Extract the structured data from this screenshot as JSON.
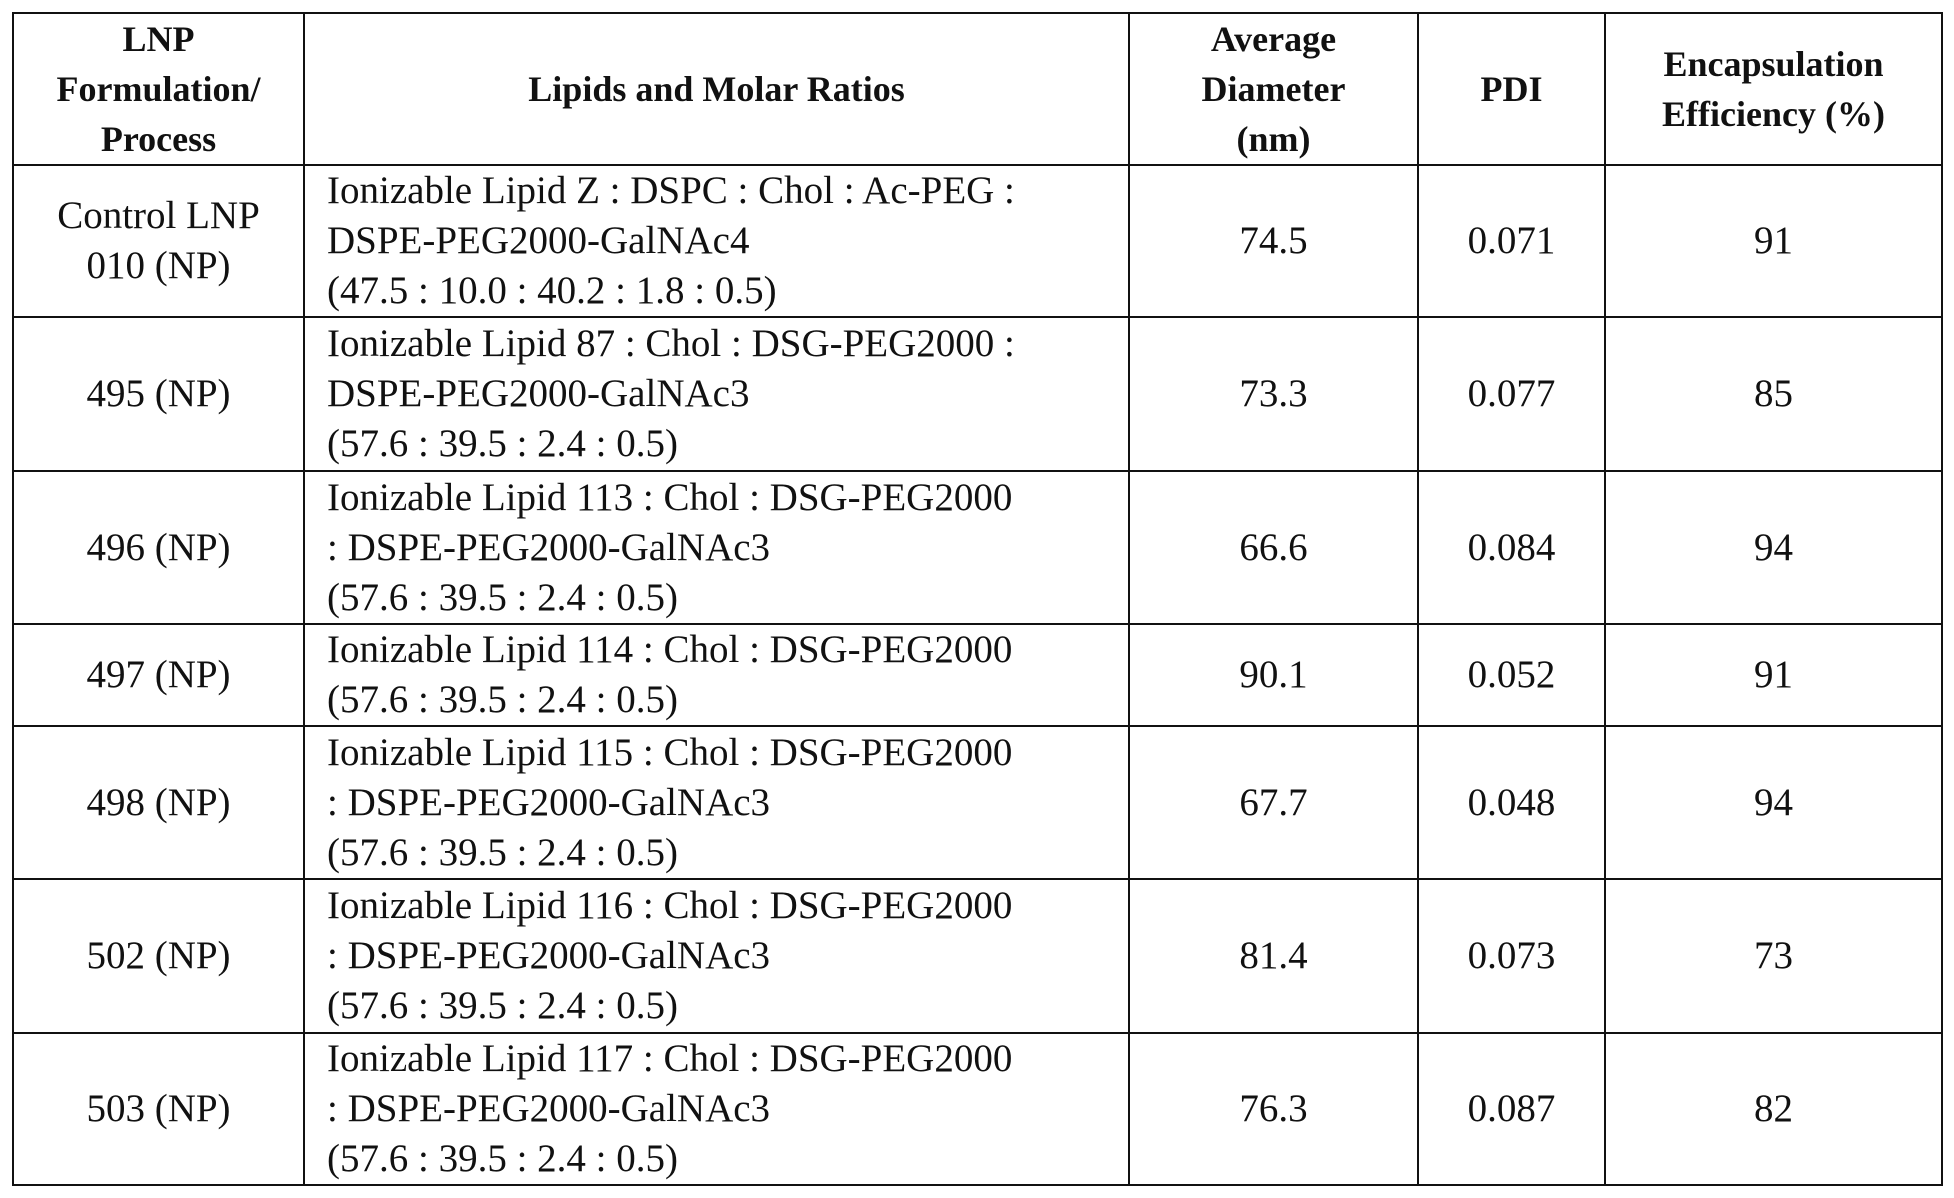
{
  "header": [
    [
      "LNP",
      "Formulation/",
      "Process"
    ],
    [
      "Lipids and Molar Ratios"
    ],
    [
      "Average",
      "Diameter",
      "(nm)"
    ],
    [
      "PDI"
    ],
    [
      "Encapsulation",
      "Efficiency (%)"
    ]
  ],
  "rows": [
    {
      "formulation": [
        "Control LNP",
        "010 (NP)"
      ],
      "lipids": [
        "Ionizable Lipid Z : DSPC : Chol : Ac-PEG :",
        "DSPE-PEG2000-GalNAc4",
        "(47.5 : 10.0 : 40.2 : 1.8 : 0.5)"
      ],
      "diameter": 74.5,
      "pdi": 0.071,
      "efficiency": 91
    },
    {
      "formulation": [
        "495 (NP)"
      ],
      "lipids": [
        "Ionizable Lipid 87 : Chol : DSG-PEG2000 :",
        "DSPE-PEG2000-GalNAc3",
        "(57.6 : 39.5 : 2.4 : 0.5)"
      ],
      "diameter": 73.3,
      "pdi": 0.077,
      "efficiency": 85
    },
    {
      "formulation": [
        "496 (NP)"
      ],
      "lipids": [
        "Ionizable Lipid 113 : Chol : DSG-PEG2000",
        ": DSPE-PEG2000-GalNAc3",
        "(57.6 : 39.5 : 2.4 : 0.5)"
      ],
      "diameter": 66.6,
      "pdi": 0.084,
      "efficiency": 94
    },
    {
      "formulation": [
        "497 (NP)"
      ],
      "lipids": [
        "Ionizable Lipid 114 : Chol : DSG-PEG2000",
        "(57.6 : 39.5 : 2.4 : 0.5)"
      ],
      "diameter": 90.1,
      "pdi": 0.052,
      "efficiency": 91
    },
    {
      "formulation": [
        "498 (NP)"
      ],
      "lipids": [
        "Ionizable Lipid 115 : Chol : DSG-PEG2000",
        ": DSPE-PEG2000-GalNAc3",
        "(57.6 : 39.5 : 2.4 : 0.5)"
      ],
      "diameter": 67.7,
      "pdi": 0.048,
      "efficiency": 94
    },
    {
      "formulation": [
        "502 (NP)"
      ],
      "lipids": [
        "Ionizable Lipid 116 : Chol : DSG-PEG2000",
        ": DSPE-PEG2000-GalNAc3",
        "(57.6 : 39.5 : 2.4 : 0.5)"
      ],
      "diameter": 81.4,
      "pdi": 0.073,
      "efficiency": 73
    },
    {
      "formulation": [
        "503 (NP)"
      ],
      "lipids": [
        "Ionizable Lipid 117 : Chol : DSG-PEG2000",
        ": DSPE-PEG2000-GalNAc3",
        "(57.6 : 39.5 : 2.4 : 0.5)"
      ],
      "diameter": 76.3,
      "pdi": 0.087,
      "efficiency": 82
    }
  ]
}
